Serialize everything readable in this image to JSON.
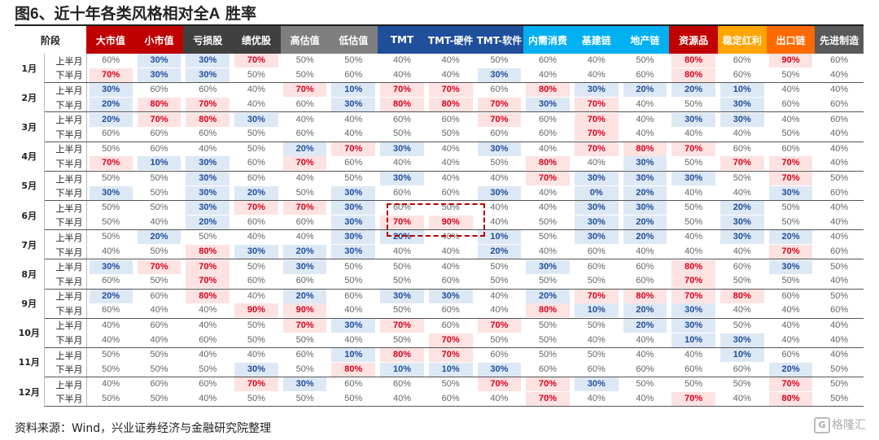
{
  "title_prefix": "图",
  "title_num": "6",
  "title_text": "、近十年各类风格相对全",
  "title_a": "A",
  "title_suffix": " 胜率",
  "source": "资料来源：Wind，兴业证券经济与金融研究院整理",
  "logo_text": "格隆汇",
  "chart_data": {
    "type": "table",
    "header_first": "阶段",
    "columns": [
      {
        "name": "大市值",
        "bg": "#c00000"
      },
      {
        "name": "小市值",
        "bg": "#c00000"
      },
      {
        "name": "亏损股",
        "bg": "#404040"
      },
      {
        "name": "绩优股",
        "bg": "#404040"
      },
      {
        "name": "高估值",
        "bg": "#7f7f7f"
      },
      {
        "name": "低估值",
        "bg": "#7f7f7f"
      },
      {
        "name": "TMT",
        "bg": "#1f4e9b"
      },
      {
        "name": "TMT-硬件",
        "bg": "#1f4e9b"
      },
      {
        "name": "TMT-软件",
        "bg": "#1f4e9b"
      },
      {
        "name": "内需消费",
        "bg": "#00b0f0"
      },
      {
        "name": "基建链",
        "bg": "#00b0f0"
      },
      {
        "name": "地产链",
        "bg": "#00b0f0"
      },
      {
        "name": "资源品",
        "bg": "#c00000"
      },
      {
        "name": "稳定红利",
        "bg": "#ffa500"
      },
      {
        "name": "出口链",
        "bg": "#ff6a00"
      },
      {
        "name": "先进制造",
        "bg": "#595959"
      }
    ],
    "half_labels": [
      "上半月",
      "下半月"
    ],
    "rows": [
      {
        "month": "1月",
        "halves": [
          [
            "60%",
            "30%",
            "30%",
            "70%",
            "50%",
            "50%",
            "40%",
            "40%",
            "50%",
            "60%",
            "40%",
            "50%",
            "80%",
            "60%",
            "90%",
            "60%"
          ],
          [
            "70%",
            "30%",
            "30%",
            "50%",
            "50%",
            "60%",
            "40%",
            "40%",
            "30%",
            "40%",
            "40%",
            "60%",
            "80%",
            "60%",
            "50%",
            "40%"
          ]
        ]
      },
      {
        "month": "2月",
        "halves": [
          [
            "30%",
            "60%",
            "60%",
            "40%",
            "70%",
            "10%",
            "70%",
            "70%",
            "60%",
            "80%",
            "30%",
            "20%",
            "20%",
            "10%",
            "40%",
            "40%"
          ],
          [
            "20%",
            "80%",
            "70%",
            "40%",
            "60%",
            "30%",
            "80%",
            "80%",
            "70%",
            "30%",
            "70%",
            "40%",
            "50%",
            "30%",
            "60%",
            "60%"
          ]
        ]
      },
      {
        "month": "3月",
        "halves": [
          [
            "20%",
            "70%",
            "80%",
            "30%",
            "40%",
            "40%",
            "60%",
            "60%",
            "70%",
            "60%",
            "70%",
            "40%",
            "30%",
            "30%",
            "40%",
            "60%"
          ],
          [
            "60%",
            "60%",
            "60%",
            "50%",
            "60%",
            "40%",
            "50%",
            "50%",
            "60%",
            "60%",
            "70%",
            "40%",
            "40%",
            "40%",
            "50%",
            "40%"
          ]
        ]
      },
      {
        "month": "4月",
        "halves": [
          [
            "50%",
            "60%",
            "40%",
            "50%",
            "20%",
            "70%",
            "30%",
            "40%",
            "30%",
            "40%",
            "70%",
            "80%",
            "70%",
            "60%",
            "60%",
            "40%"
          ],
          [
            "70%",
            "10%",
            "30%",
            "60%",
            "70%",
            "60%",
            "40%",
            "40%",
            "50%",
            "80%",
            "40%",
            "30%",
            "50%",
            "70%",
            "70%",
            "40%"
          ]
        ]
      },
      {
        "month": "5月",
        "halves": [
          [
            "50%",
            "50%",
            "30%",
            "60%",
            "40%",
            "50%",
            "30%",
            "40%",
            "40%",
            "70%",
            "30%",
            "30%",
            "30%",
            "50%",
            "70%",
            "50%"
          ],
          [
            "30%",
            "50%",
            "30%",
            "20%",
            "50%",
            "30%",
            "60%",
            "60%",
            "30%",
            "40%",
            "0%",
            "20%",
            "40%",
            "40%",
            "30%",
            "60%"
          ]
        ]
      },
      {
        "month": "6月",
        "halves": [
          [
            "50%",
            "50%",
            "30%",
            "70%",
            "70%",
            "30%",
            "60%",
            "50%",
            "40%",
            "40%",
            "30%",
            "30%",
            "50%",
            "20%",
            "50%",
            "40%"
          ],
          [
            "50%",
            "40%",
            "20%",
            "60%",
            "60%",
            "30%",
            "70%",
            "90%",
            "40%",
            "50%",
            "30%",
            "20%",
            "50%",
            "30%",
            "50%",
            "40%"
          ]
        ]
      },
      {
        "month": "7月",
        "halves": [
          [
            "50%",
            "20%",
            "50%",
            "40%",
            "40%",
            "30%",
            "20%",
            "40%",
            "10%",
            "50%",
            "30%",
            "20%",
            "40%",
            "30%",
            "20%",
            "40%"
          ],
          [
            "40%",
            "50%",
            "80%",
            "30%",
            "20%",
            "30%",
            "40%",
            "40%",
            "20%",
            "40%",
            "60%",
            "40%",
            "40%",
            "40%",
            "70%",
            "60%"
          ]
        ]
      },
      {
        "month": "8月",
        "halves": [
          [
            "30%",
            "70%",
            "70%",
            "50%",
            "30%",
            "50%",
            "50%",
            "40%",
            "50%",
            "30%",
            "60%",
            "60%",
            "80%",
            "60%",
            "30%",
            "50%"
          ],
          [
            "60%",
            "50%",
            "70%",
            "60%",
            "60%",
            "50%",
            "50%",
            "60%",
            "50%",
            "50%",
            "50%",
            "60%",
            "70%",
            "50%",
            "50%",
            "40%"
          ]
        ]
      },
      {
        "month": "9月",
        "halves": [
          [
            "20%",
            "60%",
            "80%",
            "40%",
            "20%",
            "60%",
            "30%",
            "30%",
            "40%",
            "20%",
            "70%",
            "80%",
            "70%",
            "80%",
            "60%",
            "50%"
          ],
          [
            "60%",
            "40%",
            "40%",
            "90%",
            "90%",
            "40%",
            "50%",
            "60%",
            "40%",
            "80%",
            "10%",
            "20%",
            "30%",
            "40%",
            "40%",
            "60%"
          ]
        ]
      },
      {
        "month": "10月",
        "halves": [
          [
            "40%",
            "60%",
            "40%",
            "50%",
            "70%",
            "30%",
            "70%",
            "60%",
            "70%",
            "50%",
            "50%",
            "20%",
            "30%",
            "50%",
            "40%",
            "40%"
          ],
          [
            "40%",
            "40%",
            "60%",
            "50%",
            "50%",
            "40%",
            "50%",
            "70%",
            "50%",
            "50%",
            "40%",
            "40%",
            "10%",
            "30%",
            "40%",
            "40%"
          ]
        ]
      },
      {
        "month": "11月",
        "halves": [
          [
            "50%",
            "50%",
            "40%",
            "40%",
            "60%",
            "10%",
            "80%",
            "70%",
            "60%",
            "50%",
            "50%",
            "40%",
            "40%",
            "10%",
            "60%",
            "40%"
          ],
          [
            "50%",
            "50%",
            "50%",
            "30%",
            "50%",
            "80%",
            "10%",
            "10%",
            "30%",
            "60%",
            "60%",
            "60%",
            "60%",
            "60%",
            "20%",
            "50%"
          ]
        ]
      },
      {
        "month": "12月",
        "halves": [
          [
            "40%",
            "60%",
            "60%",
            "70%",
            "30%",
            "60%",
            "60%",
            "50%",
            "70%",
            "70%",
            "30%",
            "50%",
            "50%",
            "50%",
            "70%",
            "50%"
          ],
          [
            "50%",
            "50%",
            "40%",
            "50%",
            "50%",
            "50%",
            "40%",
            "60%",
            "40%",
            "70%",
            "40%",
            "40%",
            "70%",
            "40%",
            "80%",
            "50%"
          ]
        ]
      }
    ],
    "highlight_high": [
      "70%",
      "80%",
      "90%"
    ],
    "highlight_low": [
      "0%",
      "10%",
      "20%",
      "30%"
    ],
    "colors": {
      "high_bg": "#fde2e2",
      "high_fg": "#d9001b",
      "low_bg": "#dde8f5",
      "low_fg": "#1f4e9b"
    }
  }
}
